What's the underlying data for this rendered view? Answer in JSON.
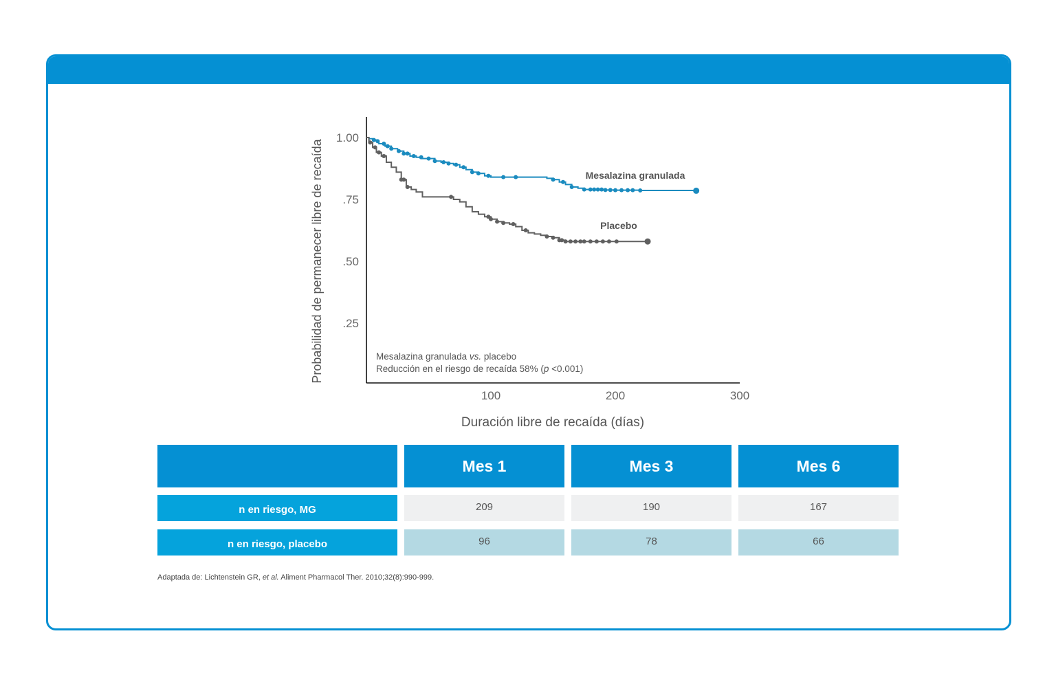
{
  "chart_data": {
    "type": "line",
    "title": "",
    "xlabel": "Duración libre de recaída (días)",
    "ylabel": "Probabilidad de permanecer libre de recaída",
    "xlim": [
      0,
      300
    ],
    "ylim": [
      0.0,
      1.05
    ],
    "x_ticks": [
      100,
      200,
      300
    ],
    "x_tick_labels": [
      "100",
      "200",
      "300"
    ],
    "y_ticks": [
      1.0,
      0.75,
      0.5,
      0.25
    ],
    "y_tick_labels": [
      "1.00",
      ".75",
      ".50",
      ".25"
    ],
    "grid": false,
    "annotation_line1_prefix": "Mesalazina granulada ",
    "annotation_line1_italic": "vs.",
    "annotation_line1_suffix": " placebo",
    "annotation_line2_prefix": "Reducción en el riesgo de recaída 58% (",
    "annotation_line2_italic": "p",
    "annotation_line2_suffix": " <0.001)",
    "series": [
      {
        "name": "Mesalazina granulada",
        "color": "#1a8bbf",
        "x": [
          0,
          2,
          5,
          8,
          10,
          15,
          20,
          25,
          30,
          35,
          40,
          45,
          55,
          60,
          65,
          70,
          75,
          80,
          85,
          90,
          95,
          100,
          110,
          120,
          130,
          145,
          150,
          155,
          160,
          165,
          170,
          175,
          180,
          190,
          200,
          220,
          265
        ],
        "y": [
          1.0,
          0.995,
          0.99,
          0.985,
          0.975,
          0.965,
          0.955,
          0.945,
          0.935,
          0.925,
          0.92,
          0.915,
          0.905,
          0.9,
          0.895,
          0.89,
          0.88,
          0.87,
          0.86,
          0.855,
          0.845,
          0.84,
          0.84,
          0.84,
          0.84,
          0.835,
          0.83,
          0.82,
          0.81,
          0.8,
          0.795,
          0.79,
          0.79,
          0.788,
          0.787,
          0.786,
          0.785
        ],
        "censored_x": [
          6,
          9,
          14,
          17,
          20,
          26,
          30,
          33,
          38,
          44,
          50,
          55,
          62,
          66,
          72,
          78,
          85,
          90,
          98,
          110,
          120,
          150,
          158,
          165,
          175,
          180,
          183,
          186,
          189,
          192,
          196,
          200,
          205,
          210,
          214,
          220,
          265
        ]
      },
      {
        "name": "Placebo",
        "color": "#606060",
        "x": [
          0,
          2,
          5,
          8,
          12,
          16,
          20,
          24,
          28,
          32,
          36,
          40,
          45,
          70,
          75,
          80,
          85,
          90,
          95,
          100,
          105,
          110,
          115,
          120,
          125,
          130,
          135,
          140,
          145,
          150,
          155,
          160,
          180,
          200,
          226
        ],
        "y": [
          1.0,
          0.98,
          0.96,
          0.94,
          0.925,
          0.9,
          0.88,
          0.86,
          0.83,
          0.8,
          0.79,
          0.78,
          0.76,
          0.75,
          0.74,
          0.72,
          0.7,
          0.69,
          0.68,
          0.67,
          0.66,
          0.655,
          0.65,
          0.64,
          0.625,
          0.615,
          0.61,
          0.605,
          0.6,
          0.595,
          0.585,
          0.58,
          0.58,
          0.58,
          0.58
        ],
        "censored_x": [
          3,
          7,
          10,
          14,
          28,
          30,
          33,
          68,
          98,
          100,
          105,
          110,
          118,
          128,
          145,
          150,
          155,
          157,
          160,
          164,
          168,
          172,
          175,
          180,
          185,
          190,
          195,
          201,
          226
        ]
      }
    ]
  },
  "table": {
    "headers": [
      "",
      "Mes 1",
      "Mes 3",
      "Mes 6"
    ],
    "rows": [
      {
        "label": "n en riesgo, MG",
        "values": [
          "209",
          "190",
          "167"
        ]
      },
      {
        "label": "n en riesgo, placebo",
        "values": [
          "96",
          "78",
          "66"
        ]
      }
    ]
  },
  "source": {
    "prefix": "Adaptada de: Lichtenstein GR, ",
    "italic": "et al.",
    "suffix": " Aliment Pharmacol Ther. 2010;32(8):990-999."
  },
  "colors": {
    "brand_blue": "#0590d3",
    "row_label_blue": "#05a3dc",
    "row1_bg": "#eff0f1",
    "row2_bg": "#b4d9e3"
  }
}
